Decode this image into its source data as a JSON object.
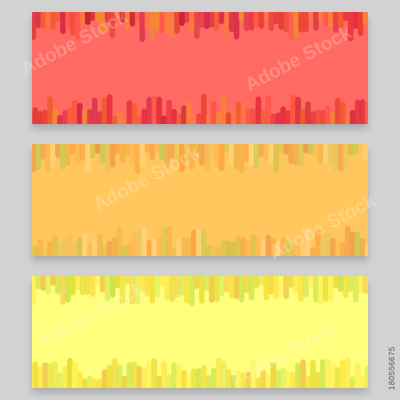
{
  "stock_id": "180556675",
  "watermark_text": "Adobe Stock",
  "banners": [
    {
      "name": "red",
      "background": "#ff6b62",
      "bar_colors": [
        "#e8402f",
        "#f05a2a",
        "#ff7d3a",
        "#e8303f",
        "#d82a4a",
        "#f38b2e",
        "#ff5546",
        "#c9232f"
      ]
    },
    {
      "name": "orange",
      "background": "#ffc75e",
      "bar_colors": [
        "#f4b34a",
        "#ffa33d",
        "#f19b4a",
        "#d9c34a",
        "#c8cb55",
        "#ffb955",
        "#e8c760",
        "#ffd37a"
      ]
    },
    {
      "name": "yellow",
      "background": "#fffe7d",
      "bar_colors": [
        "#f5e03a",
        "#e6df3a",
        "#ffe84a",
        "#c8e04a",
        "#f3c84a",
        "#d6ea5a",
        "#fff25a",
        "#efd43f"
      ]
    }
  ]
}
